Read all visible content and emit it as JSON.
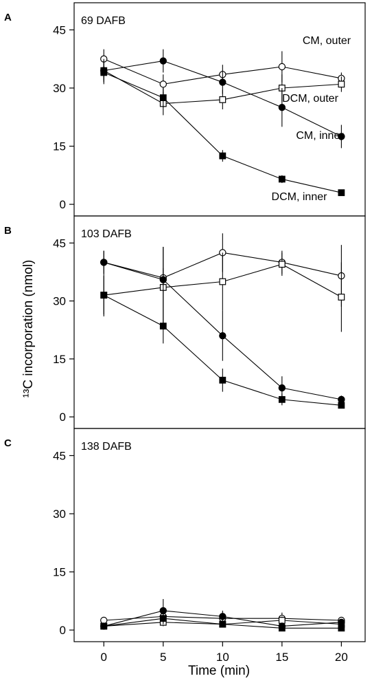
{
  "chart_data": [
    {
      "type": "line",
      "panel_letter": "A",
      "title": "69 DAFB",
      "x": [
        0,
        5,
        10,
        15,
        20
      ],
      "xlim": [
        -2.5,
        22
      ],
      "ylim": [
        -3,
        52
      ],
      "yticks": [
        0,
        15,
        30,
        45
      ],
      "series": [
        {
          "name": "CM, outer",
          "marker": "open-circle",
          "values": [
            37.5,
            31,
            33.5,
            35.5,
            32.5
          ],
          "errors": [
            2.5,
            2.5,
            2.5,
            4,
            1.5
          ]
        },
        {
          "name": "DCM, outer",
          "marker": "open-square",
          "values": [
            34.5,
            26,
            27,
            30,
            31
          ],
          "errors": [
            3,
            3,
            2.5,
            3.5,
            2
          ]
        },
        {
          "name": "CM, inner",
          "marker": "filled-circle",
          "values": [
            34.5,
            37,
            31.5,
            25,
            17.5
          ],
          "errors": [
            2.5,
            3,
            3,
            5,
            3
          ]
        },
        {
          "name": "DCM, inner",
          "marker": "filled-square",
          "values": [
            34,
            27.5,
            12.5,
            6.5,
            3
          ],
          "errors": [
            3,
            2.5,
            1.5,
            1,
            0.5
          ]
        }
      ]
    },
    {
      "type": "line",
      "panel_letter": "B",
      "title": "103 DAFB",
      "x": [
        0,
        5,
        10,
        15,
        20
      ],
      "xlim": [
        -2.5,
        22
      ],
      "ylim": [
        -3,
        52
      ],
      "yticks": [
        0,
        15,
        30,
        45
      ],
      "series": [
        {
          "name": "",
          "marker": "open-circle",
          "values": [
            40,
            36,
            42.5,
            40,
            36.5
          ],
          "errors": [
            3,
            8,
            5,
            3,
            8
          ]
        },
        {
          "name": "",
          "marker": "open-square",
          "values": [
            31.5,
            33.5,
            35,
            39.5,
            31
          ],
          "errors": [
            5.5,
            10.5,
            7.5,
            3,
            9
          ]
        },
        {
          "name": "",
          "marker": "filled-circle",
          "values": [
            40,
            35.5,
            21,
            7.5,
            4.5
          ],
          "errors": [
            3,
            3,
            6.5,
            3,
            1
          ]
        },
        {
          "name": "",
          "marker": "filled-square",
          "values": [
            31.5,
            23.5,
            9.5,
            4.5,
            3
          ],
          "errors": [
            5,
            4.5,
            3,
            1.5,
            0.8
          ]
        }
      ]
    },
    {
      "type": "line",
      "panel_letter": "C",
      "title": "138 DAFB",
      "x": [
        0,
        5,
        10,
        15,
        20
      ],
      "xlim": [
        -2.5,
        22
      ],
      "ylim": [
        -3,
        52
      ],
      "yticks": [
        0,
        15,
        30,
        45
      ],
      "xticks": [
        0,
        5,
        10,
        15,
        20
      ],
      "xlabel": "Time (min)",
      "ylabel": "¹³C incorporation (nmol)",
      "series": [
        {
          "name": "",
          "marker": "open-circle",
          "values": [
            2.5,
            3.5,
            3,
            3,
            2.5
          ],
          "errors": [
            0.8,
            2,
            1,
            1.5,
            0.8
          ]
        },
        {
          "name": "",
          "marker": "open-square",
          "values": [
            1,
            2,
            1.5,
            2.5,
            1.5
          ],
          "errors": [
            0.5,
            1,
            0.8,
            1,
            0.6
          ]
        },
        {
          "name": "",
          "marker": "filled-circle",
          "values": [
            1,
            5,
            3.5,
            1,
            2
          ],
          "errors": [
            0.5,
            3,
            1.5,
            0.8,
            0.5
          ]
        },
        {
          "name": "",
          "marker": "filled-square",
          "values": [
            1,
            3,
            1.5,
            0.5,
            0.5
          ],
          "errors": [
            0.5,
            1.5,
            0.8,
            0.3,
            0.3
          ]
        }
      ]
    }
  ]
}
